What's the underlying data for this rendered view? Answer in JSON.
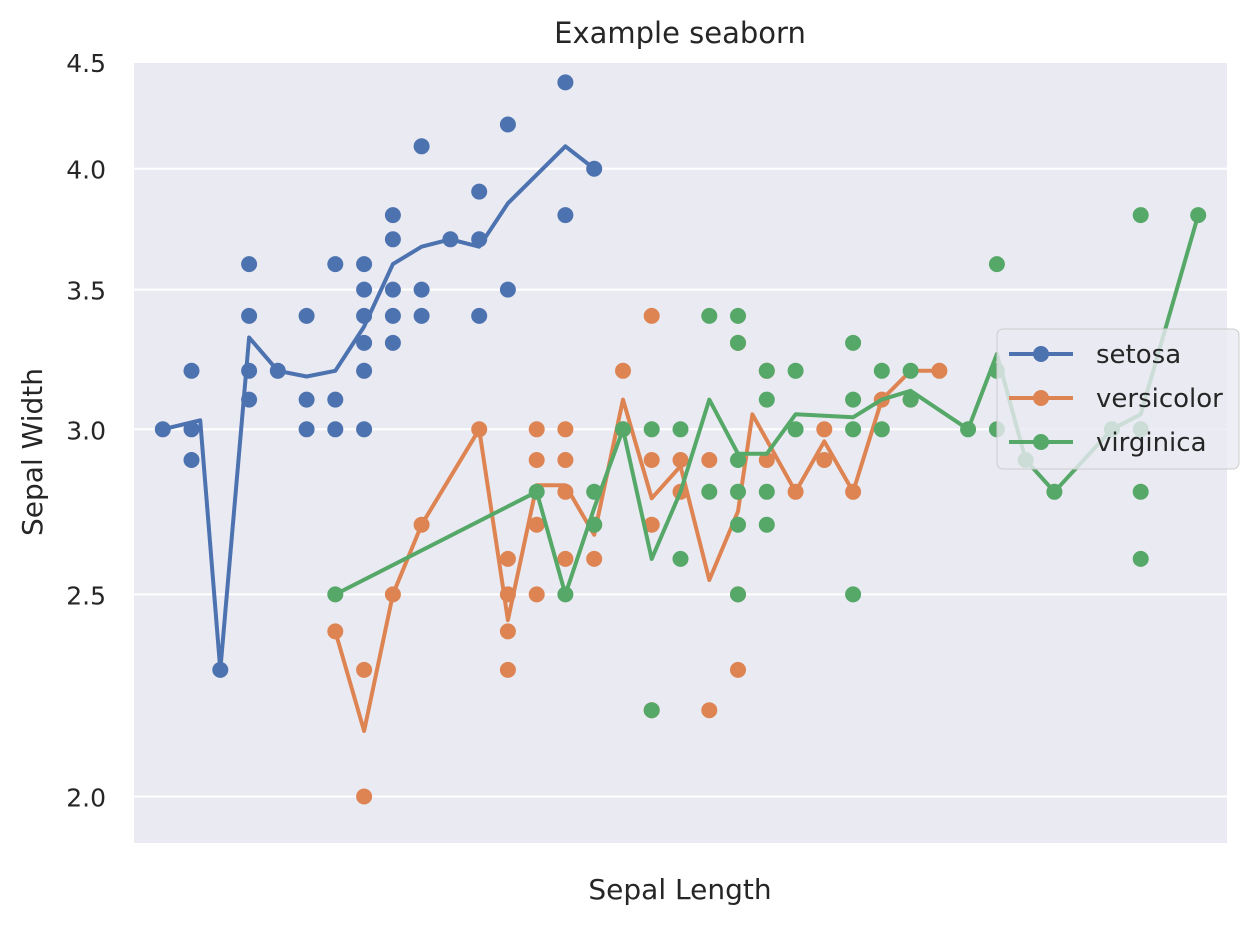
{
  "chart_data": {
    "type": "scatter",
    "title": "Example seaborn",
    "xlabel": "Sepal Length",
    "ylabel": "Sepal Width",
    "x_tick_labels": false,
    "xlim": [
      4.2,
      8.0
    ],
    "ylim": [
      1.9,
      4.5
    ],
    "yticks": [
      2.0,
      2.5,
      3.0,
      3.5,
      4.0,
      4.5
    ],
    "ytick_labels": [
      "2.0",
      "2.5",
      "3.0",
      "3.5",
      "4.0",
      "4.5"
    ],
    "y_scale": "log",
    "grid": true,
    "legend_position": "right",
    "plot_background": "#eaeaf2",
    "series": [
      {
        "name": "setosa",
        "color": "#4c72b0",
        "points": [
          [
            4.3,
            3.0
          ],
          [
            4.4,
            2.9
          ],
          [
            4.4,
            3.0
          ],
          [
            4.4,
            3.2
          ],
          [
            4.5,
            2.3
          ],
          [
            4.6,
            3.1
          ],
          [
            4.6,
            3.2
          ],
          [
            4.6,
            3.4
          ],
          [
            4.6,
            3.6
          ],
          [
            4.7,
            3.2
          ],
          [
            4.8,
            3.0
          ],
          [
            4.8,
            3.1
          ],
          [
            4.8,
            3.4
          ],
          [
            4.9,
            3.0
          ],
          [
            4.9,
            3.1
          ],
          [
            4.9,
            3.6
          ],
          [
            5.0,
            3.0
          ],
          [
            5.0,
            3.2
          ],
          [
            5.0,
            3.3
          ],
          [
            5.0,
            3.4
          ],
          [
            5.0,
            3.5
          ],
          [
            5.0,
            3.6
          ],
          [
            5.1,
            3.3
          ],
          [
            5.1,
            3.4
          ],
          [
            5.1,
            3.5
          ],
          [
            5.1,
            3.7
          ],
          [
            5.1,
            3.8
          ],
          [
            5.2,
            3.4
          ],
          [
            5.2,
            3.5
          ],
          [
            5.2,
            4.1
          ],
          [
            5.3,
            3.7
          ],
          [
            5.4,
            3.4
          ],
          [
            5.4,
            3.7
          ],
          [
            5.4,
            3.9
          ],
          [
            5.5,
            3.5
          ],
          [
            5.5,
            4.2
          ],
          [
            5.7,
            3.8
          ],
          [
            5.7,
            4.4
          ],
          [
            5.8,
            4.0
          ]
        ],
        "line": [
          [
            4.3,
            3.0
          ],
          [
            4.43,
            3.03
          ],
          [
            4.5,
            2.3
          ],
          [
            4.6,
            3.32
          ],
          [
            4.7,
            3.2
          ],
          [
            4.8,
            3.18
          ],
          [
            4.9,
            3.2
          ],
          [
            5.0,
            3.36
          ],
          [
            5.1,
            3.6
          ],
          [
            5.2,
            3.67
          ],
          [
            5.3,
            3.7
          ],
          [
            5.4,
            3.67
          ],
          [
            5.5,
            3.85
          ],
          [
            5.7,
            4.1
          ],
          [
            5.8,
            4.0
          ]
        ]
      },
      {
        "name": "versicolor",
        "color": "#dd8452",
        "points": [
          [
            4.9,
            2.4
          ],
          [
            5.0,
            2.0
          ],
          [
            5.0,
            2.3
          ],
          [
            5.1,
            2.5
          ],
          [
            5.2,
            2.7
          ],
          [
            5.4,
            3.0
          ],
          [
            5.5,
            2.3
          ],
          [
            5.5,
            2.4
          ],
          [
            5.5,
            2.5
          ],
          [
            5.5,
            2.6
          ],
          [
            5.6,
            2.5
          ],
          [
            5.6,
            2.7
          ],
          [
            5.6,
            2.9
          ],
          [
            5.6,
            3.0
          ],
          [
            5.7,
            2.6
          ],
          [
            5.7,
            2.8
          ],
          [
            5.7,
            2.9
          ],
          [
            5.7,
            3.0
          ],
          [
            5.8,
            2.6
          ],
          [
            5.8,
            2.7
          ],
          [
            5.9,
            3.0
          ],
          [
            5.9,
            3.2
          ],
          [
            6.0,
            2.2
          ],
          [
            6.0,
            2.7
          ],
          [
            6.0,
            2.9
          ],
          [
            6.0,
            3.4
          ],
          [
            6.1,
            2.8
          ],
          [
            6.1,
            2.9
          ],
          [
            6.2,
            2.2
          ],
          [
            6.2,
            2.9
          ],
          [
            6.3,
            2.3
          ],
          [
            6.3,
            2.5
          ],
          [
            6.3,
            3.3
          ],
          [
            6.4,
            2.9
          ],
          [
            6.4,
            3.2
          ],
          [
            6.5,
            2.8
          ],
          [
            6.6,
            2.9
          ],
          [
            6.6,
            3.0
          ],
          [
            6.7,
            2.8
          ],
          [
            6.8,
            3.1
          ],
          [
            6.9,
            3.1
          ],
          [
            7.0,
            3.2
          ]
        ],
        "line": [
          [
            4.9,
            2.4
          ],
          [
            5.0,
            2.15
          ],
          [
            5.1,
            2.5
          ],
          [
            5.2,
            2.7
          ],
          [
            5.4,
            3.0
          ],
          [
            5.5,
            2.43
          ],
          [
            5.6,
            2.82
          ],
          [
            5.7,
            2.82
          ],
          [
            5.8,
            2.67
          ],
          [
            5.9,
            3.1
          ],
          [
            6.0,
            2.78
          ],
          [
            6.1,
            2.88
          ],
          [
            6.2,
            2.54
          ],
          [
            6.3,
            2.74
          ],
          [
            6.35,
            3.05
          ],
          [
            6.5,
            2.8
          ],
          [
            6.6,
            2.96
          ],
          [
            6.7,
            2.8
          ],
          [
            6.8,
            3.1
          ],
          [
            6.9,
            3.2
          ],
          [
            7.0,
            3.2
          ]
        ]
      },
      {
        "name": "virginica",
        "color": "#55a868",
        "points": [
          [
            4.9,
            2.5
          ],
          [
            5.6,
            2.8
          ],
          [
            5.7,
            2.5
          ],
          [
            5.8,
            2.7
          ],
          [
            5.8,
            2.8
          ],
          [
            5.9,
            3.0
          ],
          [
            6.0,
            2.2
          ],
          [
            6.0,
            3.0
          ],
          [
            6.1,
            2.6
          ],
          [
            6.1,
            3.0
          ],
          [
            6.2,
            2.8
          ],
          [
            6.2,
            3.4
          ],
          [
            6.3,
            2.5
          ],
          [
            6.3,
            2.7
          ],
          [
            6.3,
            2.8
          ],
          [
            6.3,
            2.9
          ],
          [
            6.3,
            3.3
          ],
          [
            6.3,
            3.4
          ],
          [
            6.4,
            2.7
          ],
          [
            6.4,
            2.8
          ],
          [
            6.4,
            3.1
          ],
          [
            6.4,
            3.2
          ],
          [
            6.5,
            3.0
          ],
          [
            6.5,
            3.2
          ],
          [
            6.7,
            2.5
          ],
          [
            6.7,
            3.0
          ],
          [
            6.7,
            3.1
          ],
          [
            6.7,
            3.3
          ],
          [
            6.8,
            3.0
          ],
          [
            6.8,
            3.2
          ],
          [
            6.9,
            3.1
          ],
          [
            6.9,
            3.2
          ],
          [
            7.1,
            3.0
          ],
          [
            7.2,
            3.0
          ],
          [
            7.2,
            3.2
          ],
          [
            7.2,
            3.6
          ],
          [
            7.3,
            2.9
          ],
          [
            7.4,
            2.8
          ],
          [
            7.6,
            3.0
          ],
          [
            7.7,
            2.6
          ],
          [
            7.7,
            2.8
          ],
          [
            7.7,
            3.0
          ],
          [
            7.7,
            3.8
          ],
          [
            7.9,
            3.8
          ]
        ],
        "line": [
          [
            4.9,
            2.5
          ],
          [
            5.6,
            2.8
          ],
          [
            5.7,
            2.5
          ],
          [
            5.8,
            2.75
          ],
          [
            5.9,
            3.0
          ],
          [
            6.0,
            2.6
          ],
          [
            6.1,
            2.8
          ],
          [
            6.2,
            3.1
          ],
          [
            6.3,
            2.92
          ],
          [
            6.4,
            2.92
          ],
          [
            6.5,
            3.05
          ],
          [
            6.7,
            3.04
          ],
          [
            6.8,
            3.1
          ],
          [
            6.9,
            3.13
          ],
          [
            7.1,
            3.0
          ],
          [
            7.2,
            3.26
          ],
          [
            7.3,
            2.9
          ],
          [
            7.4,
            2.8
          ],
          [
            7.6,
            3.0
          ],
          [
            7.7,
            3.05
          ],
          [
            7.9,
            3.8
          ]
        ]
      }
    ]
  }
}
